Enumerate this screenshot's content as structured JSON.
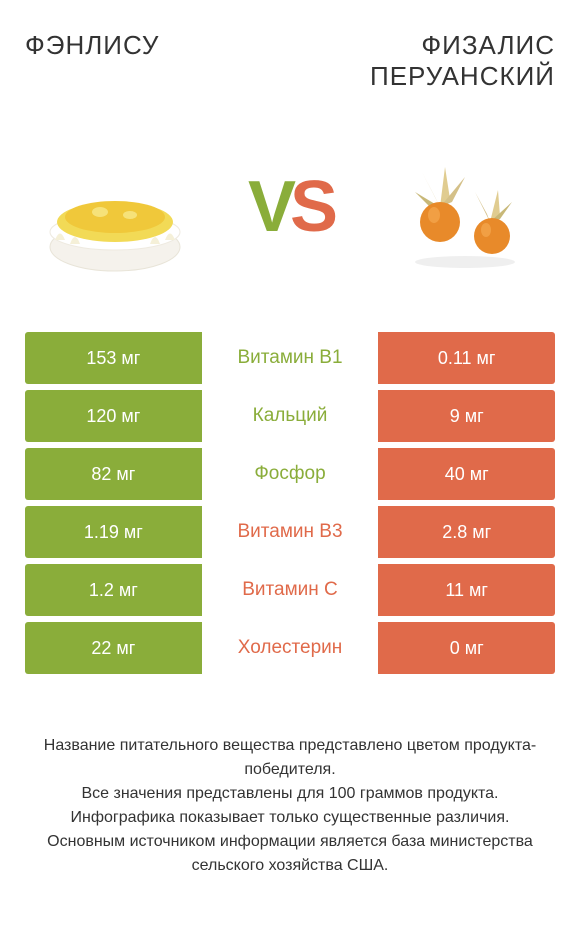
{
  "titles": {
    "left": "ФЭНЛИСУ",
    "right": "ФИЗАЛИС ПЕРУАНСКИЙ"
  },
  "vs": {
    "v": "V",
    "s": "S"
  },
  "colors": {
    "left": "#8aad3a",
    "right": "#e06a4a",
    "mid_left_text": "#8aad3a",
    "mid_right_text": "#e06a4a",
    "background": "#ffffff"
  },
  "table": {
    "rows": [
      {
        "left": "153 мг",
        "label": "Витамин B1",
        "right": "0.11 мг",
        "winner": "left"
      },
      {
        "left": "120 мг",
        "label": "Кальций",
        "right": "9 мг",
        "winner": "left"
      },
      {
        "left": "82 мг",
        "label": "Фосфор",
        "right": "40 мг",
        "winner": "left"
      },
      {
        "left": "1.19 мг",
        "label": "Витамин B3",
        "right": "2.8 мг",
        "winner": "right"
      },
      {
        "left": "1.2 мг",
        "label": "Витамин C",
        "right": "11 мг",
        "winner": "right"
      },
      {
        "left": "22 мг",
        "label": "Холестерин",
        "right": "0 мг",
        "winner": "right"
      }
    ]
  },
  "footer": {
    "line1": "Название питательного вещества представлено цветом продукта-победителя.",
    "line2": "Все значения представлены для 100 граммов продукта.",
    "line3": "Инфографика показывает только существенные различия.",
    "line4": "Основным источником информации является база министерства сельского хозяйства США."
  }
}
